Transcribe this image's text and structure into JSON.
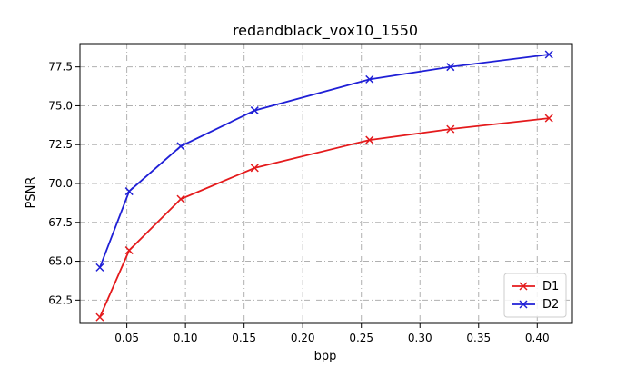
{
  "chart_data": {
    "type": "line",
    "title": "redandblack_vox10_1550",
    "xlabel": "bpp",
    "ylabel": "PSNR",
    "xlim": [
      0.01,
      0.43
    ],
    "ylim": [
      61.0,
      79.0
    ],
    "x_ticks": [
      "0.05",
      "0.10",
      "0.15",
      "0.20",
      "0.25",
      "0.30",
      "0.35",
      "0.40"
    ],
    "y_ticks": [
      "62.5",
      "65.0",
      "67.5",
      "70.0",
      "72.5",
      "75.0",
      "77.5"
    ],
    "grid": true,
    "legend_position": "bottom-right",
    "series": [
      {
        "name": "D1",
        "color": "#e41a1c",
        "marker": "x",
        "x": [
          0.027,
          0.052,
          0.096,
          0.159,
          0.257,
          0.326,
          0.41
        ],
        "y": [
          61.4,
          65.7,
          69.0,
          71.0,
          72.8,
          73.5,
          74.2
        ]
      },
      {
        "name": "D2",
        "color": "#1f1fd6",
        "marker": "x",
        "x": [
          0.027,
          0.052,
          0.096,
          0.159,
          0.257,
          0.326,
          0.41
        ],
        "y": [
          64.6,
          69.5,
          72.4,
          74.7,
          76.7,
          77.5,
          78.3
        ]
      }
    ]
  }
}
